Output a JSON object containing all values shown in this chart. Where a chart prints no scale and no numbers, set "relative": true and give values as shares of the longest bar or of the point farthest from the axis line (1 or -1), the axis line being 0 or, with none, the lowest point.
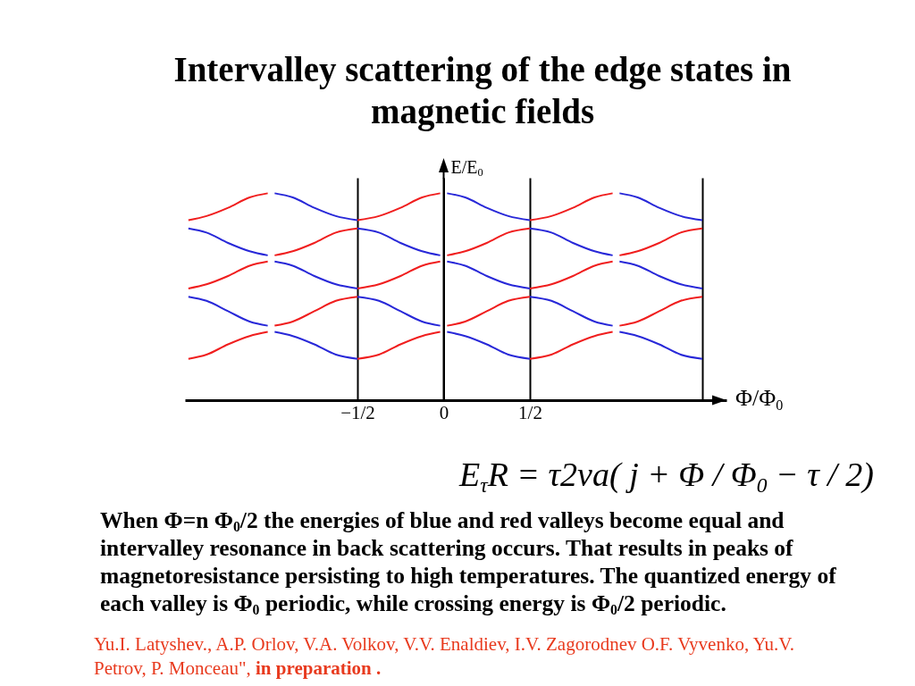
{
  "chart_data": {
    "type": "line",
    "title": "Intervalley scattering of the edge states in magnetic fields",
    "xlabel": "Φ/Φ$_{0}$",
    "ylabel": "E/E$_{0}$",
    "relative": true,
    "xlim": [
      -1.5,
      1.64
    ],
    "xticks": [
      {
        "value": -0.5,
        "label": "−1/2"
      },
      0,
      {
        "value": 0.5,
        "label": "1/2"
      },
      {
        "value": 1.5,
        "label": null
      }
    ],
    "tick_labels": "x",
    "grid": "x",
    "series": [
      {
        "color": "#f01e1e",
        "x": [
          -1.48,
          -1.375,
          -1.25,
          -1.125,
          -1.02,
          null,
          -0.5,
          -0.375,
          -0.25,
          -0.125,
          -0.02,
          null,
          0.5,
          0.625,
          0.75,
          0.875,
          0.98,
          null,
          -0.98,
          -0.875,
          -0.75,
          -0.625,
          -0.5,
          null,
          0.02,
          0.125,
          0.25,
          0.375,
          0.5,
          null,
          1.02,
          1.125,
          1.25,
          1.375,
          1.5,
          null,
          -1.48,
          -1.375,
          -1.25,
          -1.125,
          -1.02,
          null,
          -0.5,
          -0.375,
          -0.25,
          -0.125,
          -0.02,
          null,
          0.5,
          0.625,
          0.75,
          0.875,
          0.98,
          null,
          -0.98,
          -0.875,
          -0.75,
          -0.625,
          -0.5,
          null,
          0.02,
          0.125,
          0.25,
          0.375,
          0.5,
          null,
          1.02,
          1.125,
          1.25,
          1.375,
          1.5,
          null,
          -1.48,
          -1.375,
          -1.25,
          -1.125,
          -1.02,
          null,
          -0.5,
          -0.375,
          -0.25,
          -0.125,
          -0.02,
          null,
          0.5,
          0.625,
          0.75,
          0.875,
          0.98
        ],
        "values": [
          0.87,
          0.89,
          0.93,
          0.98,
          1,
          null,
          0.87,
          0.89,
          0.93,
          0.98,
          1,
          null,
          0.87,
          0.89,
          0.93,
          0.98,
          1,
          null,
          0.7,
          0.72,
          0.76,
          0.81,
          0.83,
          null,
          0.7,
          0.72,
          0.76,
          0.81,
          0.83,
          null,
          0.7,
          0.72,
          0.76,
          0.81,
          0.83,
          null,
          0.54,
          0.56,
          0.6,
          0.65,
          0.67,
          null,
          0.54,
          0.56,
          0.6,
          0.65,
          0.67,
          null,
          0.54,
          0.56,
          0.6,
          0.65,
          0.67,
          null,
          0.36,
          0.38,
          0.43,
          0.48,
          0.5,
          null,
          0.36,
          0.38,
          0.43,
          0.48,
          0.5,
          null,
          0.36,
          0.38,
          0.43,
          0.48,
          0.5,
          null,
          0.2,
          0.22,
          0.27,
          0.31,
          0.33,
          null,
          0.2,
          0.22,
          0.27,
          0.31,
          0.33,
          null,
          0.2,
          0.22,
          0.27,
          0.31,
          0.33
        ]
      },
      {
        "color": "#2828d8",
        "x": [
          -0.98,
          -0.875,
          -0.75,
          -0.625,
          -0.5,
          null,
          0.02,
          0.125,
          0.25,
          0.375,
          0.5,
          null,
          1.02,
          1.125,
          1.25,
          1.375,
          1.5,
          null,
          -1.48,
          -1.375,
          -1.25,
          -1.125,
          -1.02,
          null,
          -0.5,
          -0.375,
          -0.25,
          -0.125,
          -0.02,
          null,
          0.5,
          0.625,
          0.75,
          0.875,
          0.98,
          null,
          -0.98,
          -0.875,
          -0.75,
          -0.625,
          -0.5,
          null,
          0.02,
          0.125,
          0.25,
          0.375,
          0.5,
          null,
          1.02,
          1.125,
          1.25,
          1.375,
          1.5,
          null,
          -1.48,
          -1.375,
          -1.25,
          -1.125,
          -1.02,
          null,
          -0.5,
          -0.375,
          -0.25,
          -0.125,
          -0.02,
          null,
          0.5,
          0.625,
          0.75,
          0.875,
          0.98,
          null,
          -0.98,
          -0.875,
          -0.75,
          -0.625,
          -0.5,
          null,
          0.02,
          0.125,
          0.25,
          0.375,
          0.5,
          null,
          1.02,
          1.125,
          1.25,
          1.375,
          1.5
        ],
        "values": [
          1,
          0.98,
          0.93,
          0.89,
          0.87,
          null,
          1,
          0.98,
          0.93,
          0.89,
          0.87,
          null,
          1,
          0.98,
          0.93,
          0.89,
          0.87,
          null,
          0.83,
          0.81,
          0.76,
          0.72,
          0.7,
          null,
          0.83,
          0.81,
          0.76,
          0.72,
          0.7,
          null,
          0.83,
          0.81,
          0.76,
          0.72,
          0.7,
          null,
          0.67,
          0.65,
          0.6,
          0.56,
          0.54,
          null,
          0.67,
          0.65,
          0.6,
          0.56,
          0.54,
          null,
          0.67,
          0.65,
          0.6,
          0.56,
          0.54,
          null,
          0.5,
          0.48,
          0.43,
          0.38,
          0.36,
          null,
          0.5,
          0.48,
          0.43,
          0.38,
          0.36,
          null,
          0.5,
          0.48,
          0.43,
          0.38,
          0.36,
          null,
          0.33,
          0.31,
          0.27,
          0.22,
          0.2,
          null,
          0.33,
          0.31,
          0.27,
          0.22,
          0.2,
          null,
          0.33,
          0.31,
          0.27,
          0.22,
          0.2
        ]
      }
    ],
    "annotations": [
      "E$_{τ}$R = τ2va( j + Φ / Φ$_{0}$ − τ / 2)",
      "When Φ=n Φ$_{0}$/2 the energies of blue and red valleys become equal and intervalley resonance in back scattering occurs. That results in peaks of magnetoresistance persisting to high temperatures. The quantized energy of each valley is Φ$_{0}$ periodic, while crossing energy is Φ$_{0}$/2 periodic.",
      "Yu.I. Latyshev., A.P. Orlov, V.A. Volkov, V.V. Enaldiev, I.V. Zagorodnev O.F. Vyvenko, Yu.V.",
      "Petrov, P. Monceau\",",
      "in preparation ."
    ]
  }
}
